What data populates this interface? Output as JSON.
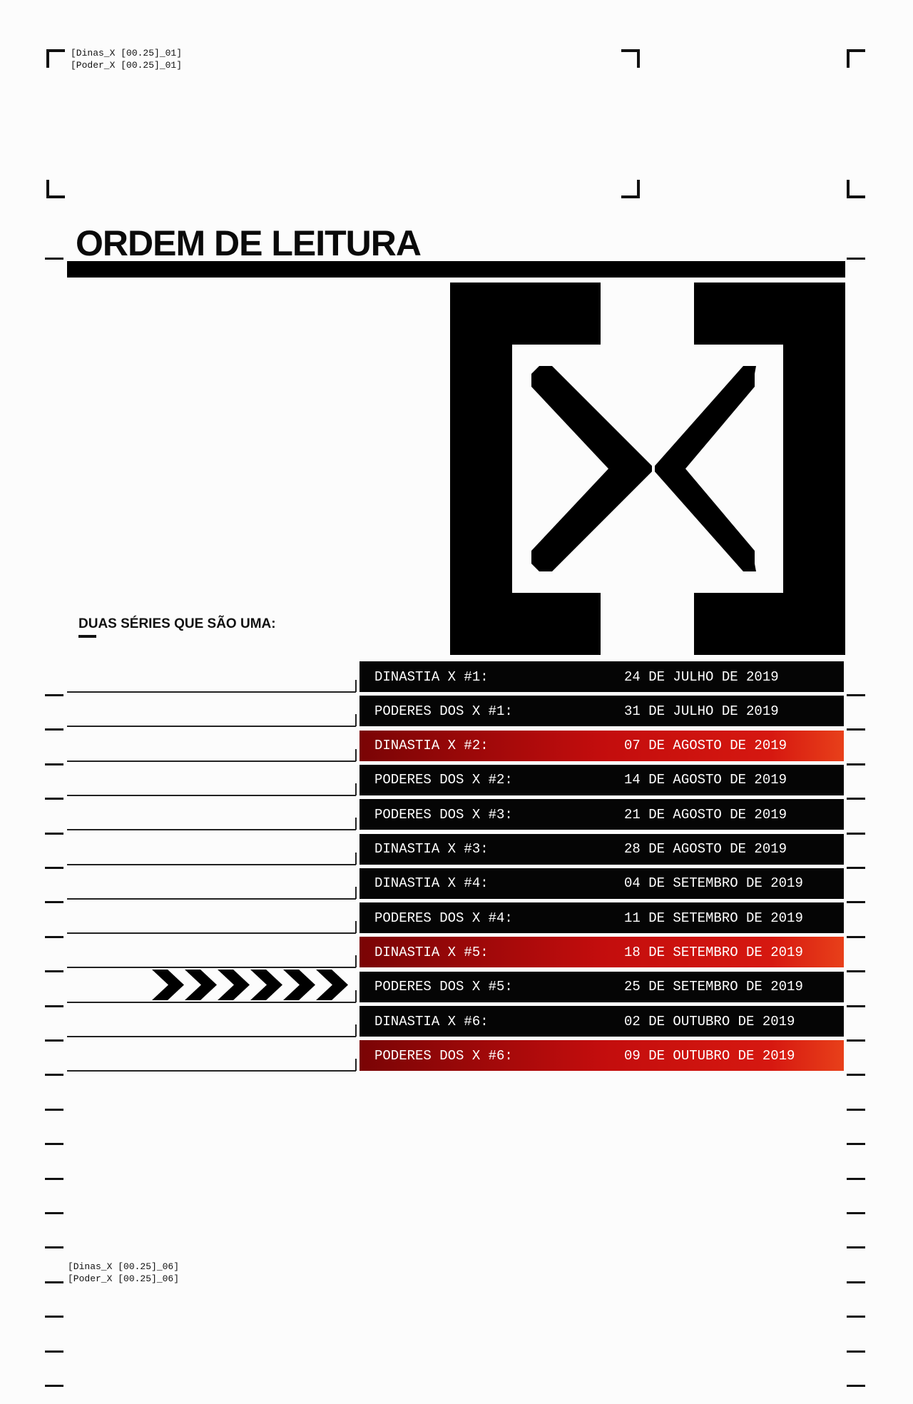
{
  "header_codes": {
    "top": [
      "[Dinas_X [00.25]_01]",
      "[Poder_X [00.25]_01]"
    ],
    "bottom": [
      "[Dinas_X [00.25]_06]",
      "[Poder_X [00.25]_06]"
    ]
  },
  "title": "ORDEM DE LEITURA",
  "subtitle": "DUAS SÉRIES QUE SÃO UMA:",
  "logo_icon": "x-bracket-logo",
  "colors": {
    "highlight": "#c30d0d",
    "row": "#050505"
  },
  "reading_order": [
    {
      "title": "DINASTIA X #1:",
      "date": "24 DE JULHO DE 2019",
      "highlight": false
    },
    {
      "title": "PODERES DOS X #1:",
      "date": "31 DE JULHO DE 2019",
      "highlight": false
    },
    {
      "title": "DINASTIA X #2:",
      "date": "07 DE AGOSTO DE 2019",
      "highlight": true
    },
    {
      "title": "PODERES DOS X #2:",
      "date": "14 DE AGOSTO DE 2019",
      "highlight": false
    },
    {
      "title": "PODERES DOS X #3:",
      "date": "21 DE AGOSTO DE 2019",
      "highlight": false
    },
    {
      "title": "DINASTIA X #3:",
      "date": "28 DE AGOSTO DE 2019",
      "highlight": false
    },
    {
      "title": "DINASTIA X #4:",
      "date": "04 DE SETEMBRO DE 2019",
      "highlight": false
    },
    {
      "title": "PODERES DOS X #4:",
      "date": "11 DE SETEMBRO DE 2019",
      "highlight": false
    },
    {
      "title": "DINASTIA X #5:",
      "date": "18 DE SETEMBRO DE 2019",
      "highlight": true
    },
    {
      "title": "PODERES DOS X #5:",
      "date": "25 DE SETEMBRO DE 2019",
      "highlight": false
    },
    {
      "title": "DINASTIA X #6:",
      "date": "02 DE OUTUBRO DE 2019",
      "highlight": false
    },
    {
      "title": "PODERES DOS X #6:",
      "date": "09 DE OUTUBRO DE 2019",
      "highlight": true
    }
  ]
}
